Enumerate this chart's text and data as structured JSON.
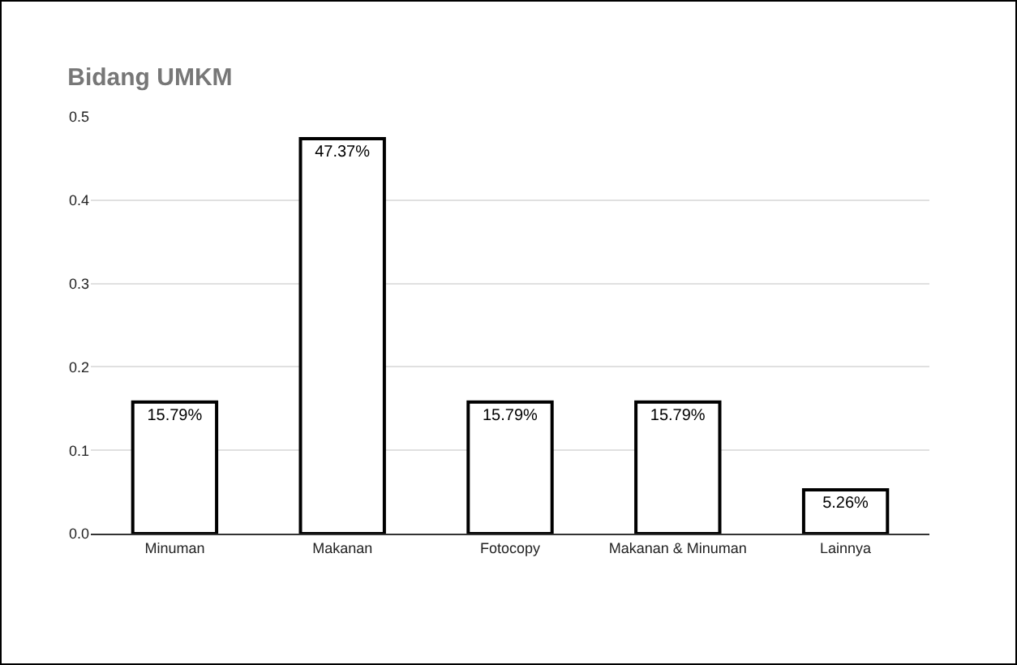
{
  "chart_data": {
    "type": "bar",
    "title": "Bidang UMKM",
    "categories": [
      "Minuman",
      "Makanan",
      "Fotocopy",
      "Makanan & Minuman",
      "Lainnya"
    ],
    "values": [
      0.1579,
      0.4737,
      0.1579,
      0.1579,
      0.0526
    ],
    "value_labels": [
      "15.79%",
      "47.37%",
      "15.79%",
      "15.79%",
      "5.26%"
    ],
    "color": "#ffffff",
    "ylim": [
      0,
      0.5
    ],
    "yticks": [
      {
        "value": 0,
        "label": "0.0"
      },
      0.1,
      0.2,
      0.3,
      0.4,
      0.5
    ],
    "grid": "y",
    "legend": false
  }
}
